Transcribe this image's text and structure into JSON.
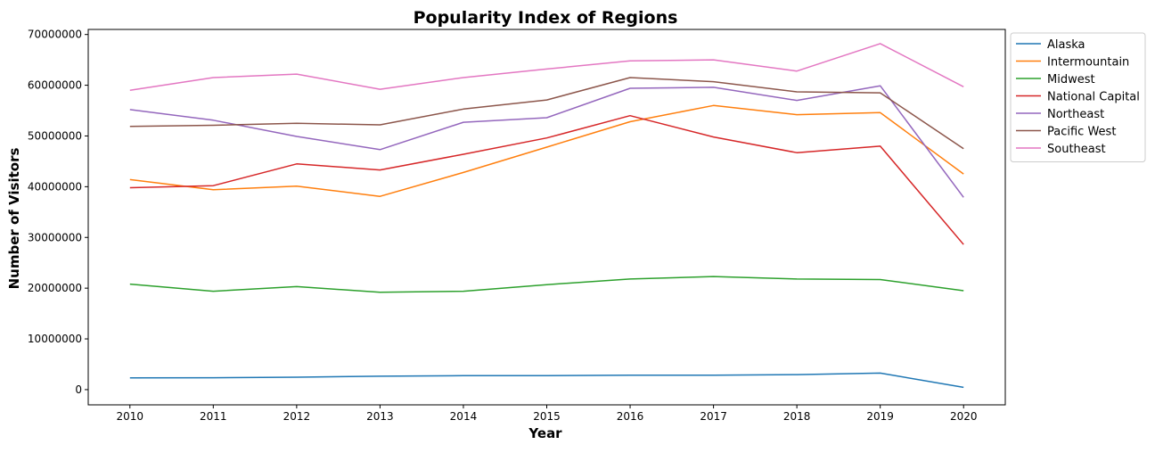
{
  "chart_data": {
    "type": "line",
    "title": "Popularity Index of Regions",
    "xlabel": "Year",
    "ylabel": "Number of Visitors",
    "x": [
      2010,
      2011,
      2012,
      2013,
      2014,
      2015,
      2016,
      2017,
      2018,
      2019,
      2020
    ],
    "xlim": [
      2009.5,
      2020.5
    ],
    "ylim": [
      -3000000,
      71000000
    ],
    "yticks": [
      0,
      10000000,
      20000000,
      30000000,
      40000000,
      50000000,
      60000000,
      70000000
    ],
    "ytick_labels": [
      "0",
      "10000000",
      "20000000",
      "30000000",
      "40000000",
      "50000000",
      "60000000",
      "70000000"
    ],
    "grid": false,
    "legend_position": "outside-top-right",
    "series": [
      {
        "name": "Alaska",
        "color": "#1f77b4",
        "values": [
          2300000,
          2350000,
          2450000,
          2650000,
          2750000,
          2750000,
          2850000,
          2850000,
          2950000,
          3250000,
          450000
        ]
      },
      {
        "name": "Intermountain",
        "color": "#ff7f0e",
        "values": [
          41400000,
          39400000,
          40100000,
          38100000,
          42800000,
          47800000,
          52800000,
          56000000,
          54200000,
          54600000,
          42500000
        ]
      },
      {
        "name": "Midwest",
        "color": "#2ca02c",
        "values": [
          20800000,
          19400000,
          20300000,
          19200000,
          19400000,
          20700000,
          21800000,
          22300000,
          21800000,
          21700000,
          19500000
        ]
      },
      {
        "name": "National Capital",
        "color": "#d62728",
        "values": [
          39800000,
          40200000,
          44500000,
          43300000,
          46400000,
          49600000,
          54000000,
          49800000,
          46700000,
          48000000,
          28600000
        ]
      },
      {
        "name": "Northeast",
        "color": "#9467bd",
        "values": [
          55200000,
          53100000,
          49900000,
          47300000,
          52700000,
          53600000,
          59400000,
          59600000,
          57000000,
          59900000,
          37900000
        ]
      },
      {
        "name": "Pacific West",
        "color": "#8c564b",
        "values": [
          51900000,
          52100000,
          52500000,
          52200000,
          55300000,
          57100000,
          61500000,
          60700000,
          58700000,
          58500000,
          47500000
        ]
      },
      {
        "name": "Southeast",
        "color": "#e377c2",
        "values": [
          59000000,
          61500000,
          62200000,
          59200000,
          61500000,
          63200000,
          64800000,
          65000000,
          62800000,
          68200000,
          59700000
        ]
      }
    ]
  }
}
